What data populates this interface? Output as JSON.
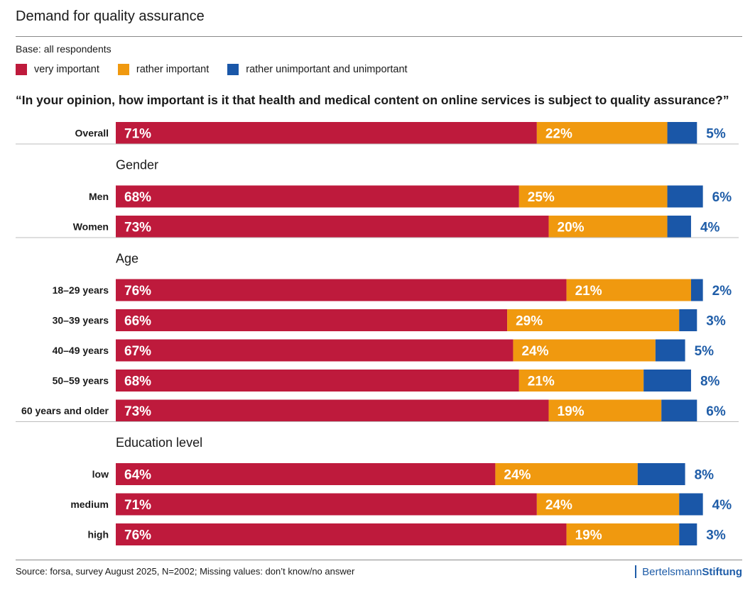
{
  "title": "Demand for quality assurance",
  "base": "Base: all respondents",
  "legend": [
    {
      "label": "very important",
      "color": "#be1a3c"
    },
    {
      "label": "rather important",
      "color": "#f0990f"
    },
    {
      "label": "rather unimportant and unimportant",
      "color": "#1a57a8"
    }
  ],
  "question": "“In your opinion, how important is it that health and medical content on online services is subject to quality assurance?”",
  "source": "Source: forsa, survey August 2025, N=2002; Missing values: don’t know/no answer",
  "brand": {
    "part1": "Bertelsmann",
    "part2": "Stiftung"
  },
  "chart_data": {
    "type": "bar",
    "orientation": "horizontal",
    "stacked": true,
    "unit": "%",
    "series_names": [
      "very important",
      "rather important",
      "rather unimportant and unimportant"
    ],
    "colors": [
      "#be1a3c",
      "#f0990f",
      "#1a57a8"
    ],
    "groups": [
      {
        "heading": "",
        "rows": [
          {
            "label": "Overall",
            "values": [
              71,
              22,
              5
            ]
          }
        ]
      },
      {
        "heading": "Gender",
        "rows": [
          {
            "label": "Men",
            "values": [
              68,
              25,
              6
            ]
          },
          {
            "label": "Women",
            "values": [
              73,
              20,
              4
            ]
          }
        ]
      },
      {
        "heading": "Age",
        "rows": [
          {
            "label": "18–29 years",
            "values": [
              76,
              21,
              2
            ]
          },
          {
            "label": "30–39 years",
            "values": [
              66,
              29,
              3
            ]
          },
          {
            "label": "40–49 years",
            "values": [
              67,
              24,
              5
            ]
          },
          {
            "label": "50–59 years",
            "values": [
              68,
              21,
              8
            ]
          },
          {
            "label": "60 years and older",
            "values": [
              73,
              19,
              6
            ]
          }
        ]
      },
      {
        "heading": "Education level",
        "rows": [
          {
            "label": "low",
            "values": [
              64,
              24,
              8
            ]
          },
          {
            "label": "medium",
            "values": [
              71,
              24,
              4
            ]
          },
          {
            "label": "high",
            "values": [
              76,
              19,
              3
            ]
          }
        ]
      }
    ]
  }
}
